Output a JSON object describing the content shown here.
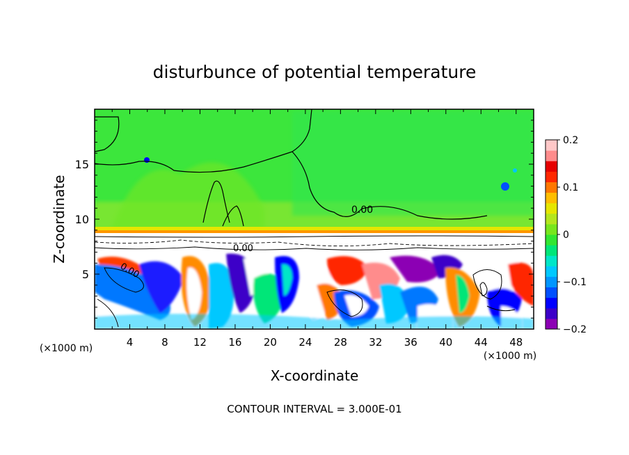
{
  "chart_data": {
    "type": "heatmap",
    "title": "disturbunce of potential temperature",
    "xlabel": "X-coordinate",
    "ylabel": "Z-coordinate",
    "x_unit": "(×1000 m)",
    "x_unit_right": "(×1000 m)",
    "footer": "CONTOUR INTERVAL = 3.000E-01",
    "xlim": [
      0,
      50
    ],
    "ylim": [
      0,
      20
    ],
    "x_ticks": [
      4,
      8,
      12,
      16,
      20,
      24,
      28,
      32,
      36,
      40,
      44,
      48
    ],
    "y_ticks": [
      5,
      10,
      15
    ],
    "colorbar": {
      "min": -0.2,
      "max": 0.2,
      "ticks": [
        0.2,
        0.1,
        0,
        -0.1,
        -0.2
      ],
      "tick_labels": [
        "0.2",
        "0.1",
        "0",
        "−0.1",
        "−0.2"
      ],
      "colors": [
        "#8c00b4",
        "#3c00c8",
        "#0000ff",
        "#0050ff",
        "#0096ff",
        "#00c8ff",
        "#00e6c8",
        "#00e678",
        "#32e632",
        "#78e61e",
        "#b4e61e",
        "#e6e600",
        "#ffbe00",
        "#ff7800",
        "#ff2800",
        "#e60000",
        "#ff8c8c",
        "#ffc8c8"
      ]
    },
    "contour_labels": [
      {
        "text": "0.00",
        "x": 27.6,
        "z": 10.9
      },
      {
        "text": "0.00",
        "x": 14.0,
        "z": 7.3
      },
      {
        "text": "0.00",
        "x": 3.8,
        "z": 5.4
      }
    ],
    "grid": false,
    "legend": "colorbar-right"
  }
}
